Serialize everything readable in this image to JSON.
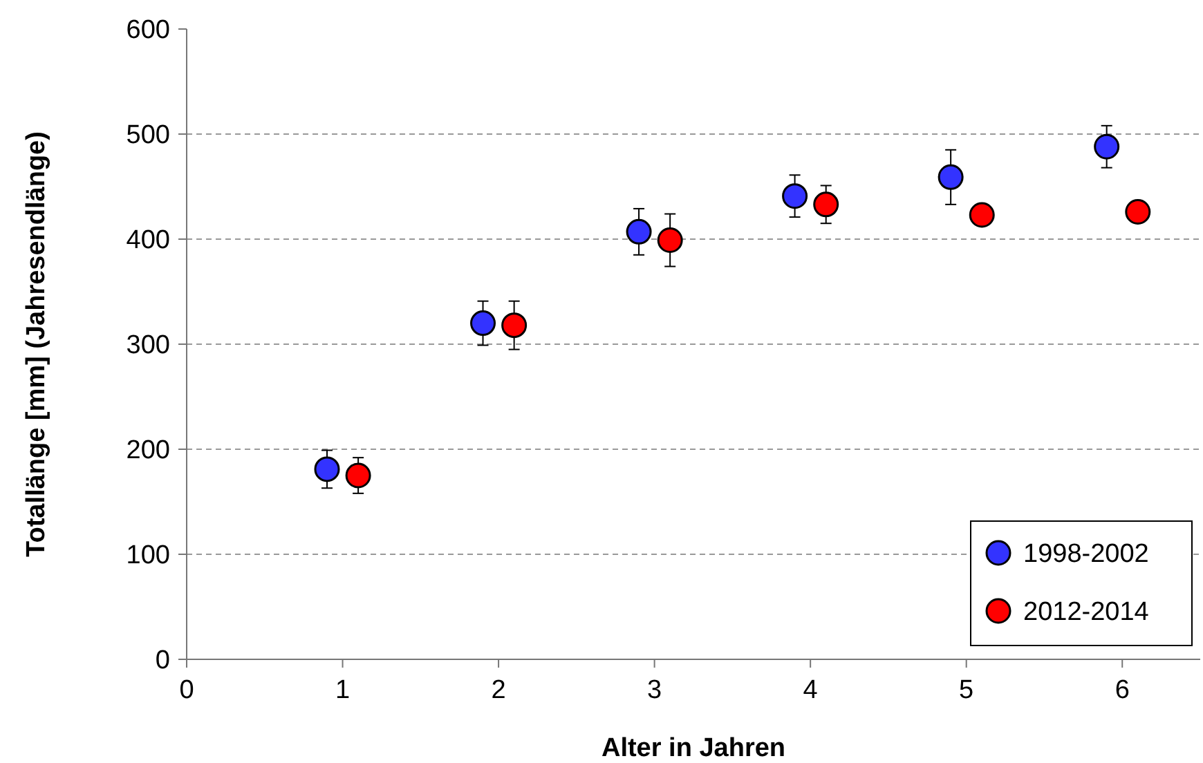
{
  "chart_data": {
    "type": "scatter",
    "xlabel": "Alter in Jahren",
    "ylabel": "Totallänge [mm] (Jahresendlänge)",
    "xlim": [
      0,
      6.5
    ],
    "xticks": [
      0,
      1,
      2,
      3,
      4,
      5,
      6
    ],
    "ylim": [
      0,
      600
    ],
    "yticks": [
      0,
      100,
      200,
      300,
      400,
      500,
      600
    ],
    "grid": "y",
    "legend": "bottom right",
    "marker": "circle",
    "series": [
      {
        "name": "1998-2002",
        "color": "#3333ff",
        "x": [
          0.9,
          1.9,
          2.9,
          3.9,
          4.9,
          5.9
        ],
        "values": [
          181,
          320,
          407,
          441,
          459,
          488
        ],
        "errors": [
          18,
          21,
          22,
          20,
          26,
          20
        ]
      },
      {
        "name": "2012-2014",
        "color": "#ff0000",
        "x": [
          1.1,
          2.1,
          3.1,
          4.1,
          5.1,
          6.1
        ],
        "values": [
          175,
          318,
          399,
          433,
          423,
          426
        ],
        "errors": [
          17,
          23,
          25,
          18,
          null,
          null
        ]
      }
    ]
  }
}
